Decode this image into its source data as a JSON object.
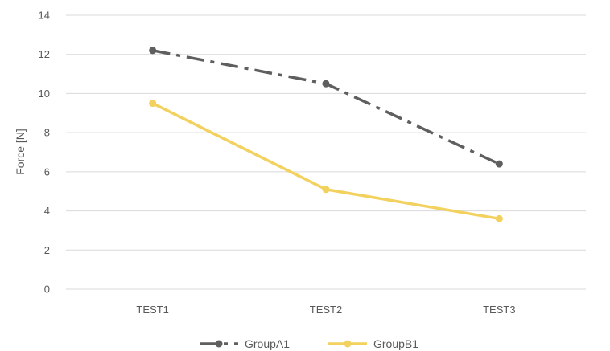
{
  "chart_data": {
    "type": "line",
    "title": "",
    "xlabel": "",
    "ylabel": "Force [N]",
    "categories": [
      "TEST1",
      "TEST2",
      "TEST3"
    ],
    "ylim": [
      0,
      14
    ],
    "yticks": [
      0,
      2,
      4,
      6,
      8,
      10,
      12,
      14
    ],
    "grid": true,
    "legend_position": "bottom",
    "series": [
      {
        "name": "GroupA1",
        "values": [
          12.2,
          10.5,
          6.4
        ],
        "color": "#5f5f5f",
        "line_style": "dash-dot"
      },
      {
        "name": "GroupB1",
        "values": [
          9.5,
          5.1,
          3.6
        ],
        "color": "#f3d15e",
        "line_style": "solid"
      }
    ]
  }
}
